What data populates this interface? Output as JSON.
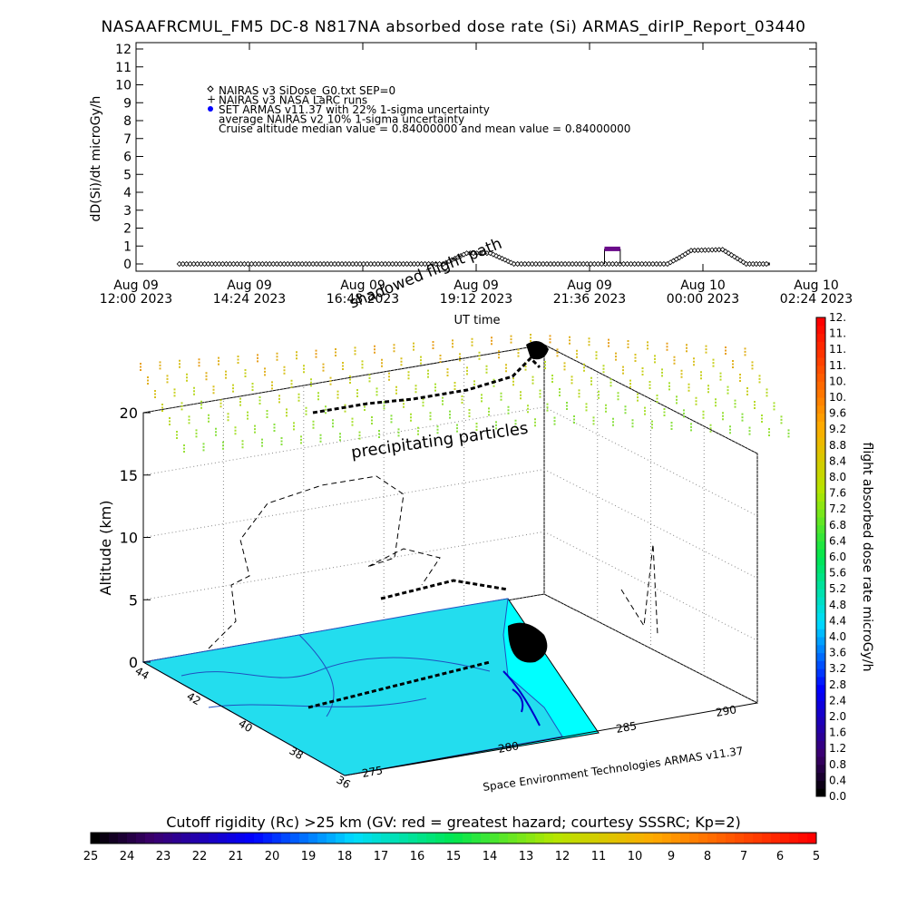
{
  "title": "NASAAFRCMUL_FM5 DC-8   N817NA absorbed dose rate (Si) ARMAS_dirIP_Report_03440",
  "chart_data": [
    {
      "type": "line",
      "ylabel": "dD(Si)/dt microGy/h",
      "xlabel": "UT time",
      "ylim": [
        0,
        12
      ],
      "yticks": [
        "0",
        "1",
        "2",
        "3",
        "4",
        "5",
        "6",
        "7",
        "8",
        "9",
        "10",
        "11",
        "12"
      ],
      "xticks": [
        {
          "date": "Aug 09",
          "time": "12:00 2023"
        },
        {
          "date": "Aug 09",
          "time": "14:24 2023"
        },
        {
          "date": "Aug 09",
          "time": "16:48 2023"
        },
        {
          "date": "Aug 09",
          "time": "19:12 2023"
        },
        {
          "date": "Aug 09",
          "time": "21:36 2023"
        },
        {
          "date": "Aug 10",
          "time": "00:00 2023"
        },
        {
          "date": "Aug 10",
          "time": "02:24 2023"
        }
      ],
      "legend": [
        "NAIRAS v3 SiDose_G0.txt SEP=0",
        "NAIRAS v3 NASA LaRC runs",
        "SET ARMAS v11.37 with 22% 1-sigma uncertainty",
        "average NAIRAS v2 10% 1-sigma uncertainty",
        "Cruise altitude median value = 0.84000000 and mean value = 0.84000000"
      ],
      "series": [
        {
          "name": "NAIRAS v3 SiDose_G0.txt SEP=0",
          "points": [
            [
              "2023-08-09 12:55",
              0.0
            ],
            [
              "2023-08-09 18:30",
              0.0
            ],
            [
              "2023-08-09 18:45",
              0.3
            ],
            [
              "2023-08-09 19:00",
              0.6
            ],
            [
              "2023-08-09 19:30",
              0.6
            ],
            [
              "2023-08-09 19:45",
              0.3
            ],
            [
              "2023-08-09 20:00",
              0.0
            ],
            [
              "2023-08-09 23:15",
              0.0
            ],
            [
              "2023-08-09 23:30",
              0.35
            ],
            [
              "2023-08-09 23:45",
              0.75
            ],
            [
              "2023-08-10 00:25",
              0.8
            ],
            [
              "2023-08-10 00:40",
              0.4
            ],
            [
              "2023-08-10 00:55",
              0.0
            ],
            [
              "2023-08-10 01:25",
              0.0
            ]
          ]
        },
        {
          "name": "SET ARMAS v11.37 with 22% 1-sigma uncertainty",
          "points": [
            [
              "2023-08-09 21:55",
              0.84
            ],
            [
              "2023-08-09 22:15",
              0.84
            ]
          ]
        }
      ]
    },
    {
      "type": "scatter",
      "title": "",
      "zlabel": "Altitude (km)",
      "zticks": [
        "0",
        "5",
        "10",
        "15",
        "20"
      ],
      "lat_ticks": [
        "36",
        "38",
        "40",
        "42",
        "44"
      ],
      "lon_ticks": [
        "275",
        "280",
        "285",
        "290"
      ],
      "annotations": [
        "precipitating particles",
        "shadowed flight path"
      ],
      "credit": "Space Environment Technologies ARMAS v11.37"
    },
    {
      "type": "colorbar",
      "label": "flight absorbed dose rate microGy/h",
      "ticks": [
        "0.0",
        "0.4",
        "0.8",
        "1.2",
        "1.6",
        "2.0",
        "2.4",
        "2.8",
        "3.2",
        "3.6",
        "4.0",
        "4.4",
        "4.8",
        "5.2",
        "5.6",
        "6.0",
        "6.4",
        "6.8",
        "7.2",
        "7.6",
        "8.0",
        "8.4",
        "8.8",
        "9.2",
        "9.6",
        "10.",
        "10.",
        "11.",
        "11.",
        "11.",
        "12."
      ]
    },
    {
      "type": "colorbar",
      "label": "Cutoff rigidity (Rc) >25 km (GV: red = greatest hazard; courtesy SSSRC; Kp=2)",
      "ticks": [
        "25",
        "24",
        "23",
        "22",
        "21",
        "20",
        "19",
        "18",
        "17",
        "16",
        "15",
        "14",
        "13",
        "12",
        "11",
        "10",
        "9",
        "8",
        "7",
        "6",
        "5"
      ]
    }
  ],
  "colors": {
    "ocean": "#00ffff",
    "land": "#23ddee",
    "armas": "#0000ff",
    "armas_marker": "#6a0a8a"
  }
}
